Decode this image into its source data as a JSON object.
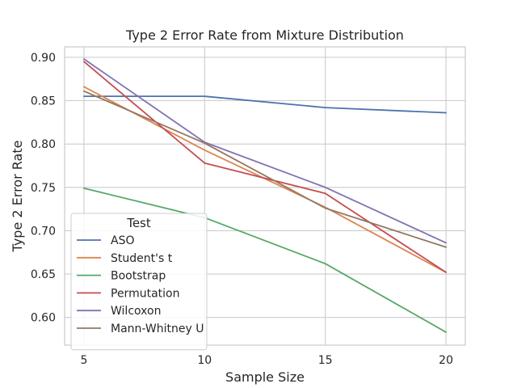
{
  "chart_data": {
    "type": "line",
    "title": "Type 2 Error Rate from Mixture Distribution",
    "xlabel": "Sample Size",
    "ylabel": "Type 2 Error Rate",
    "x": [
      5,
      10,
      15,
      20
    ],
    "xticks": [
      "5",
      "10",
      "15",
      "20"
    ],
    "yticks": [
      "0.60",
      "0.65",
      "0.70",
      "0.75",
      "0.80",
      "0.85",
      "0.90"
    ],
    "ylim": [
      0.568,
      0.912
    ],
    "xlim": [
      4.2,
      20.8
    ],
    "grid": true,
    "legend": {
      "title": "Test",
      "placement": "lower-left"
    },
    "series": [
      {
        "name": "ASO",
        "color": "#4c72b0",
        "values": [
          0.855,
          0.855,
          0.842,
          0.836
        ]
      },
      {
        "name": "Student's t",
        "color": "#dd8452",
        "values": [
          0.866,
          0.793,
          0.727,
          0.652
        ]
      },
      {
        "name": "Bootstrap",
        "color": "#55a868",
        "values": [
          0.749,
          0.715,
          0.662,
          0.583
        ]
      },
      {
        "name": "Permutation",
        "color": "#c44e52",
        "values": [
          0.895,
          0.778,
          0.743,
          0.652
        ]
      },
      {
        "name": "Wilcoxon",
        "color": "#8172b3",
        "values": [
          0.898,
          0.802,
          0.75,
          0.686
        ]
      },
      {
        "name": "Mann-Whitney U",
        "color": "#937860",
        "values": [
          0.861,
          0.801,
          0.726,
          0.681
        ]
      }
    ]
  }
}
